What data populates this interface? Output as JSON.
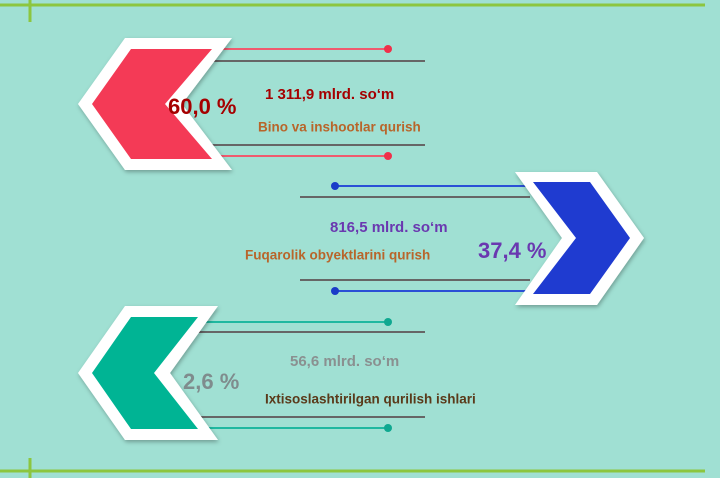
{
  "items": [
    {
      "percent": "60,0 %",
      "amount": "1 311,9 mlrd. so‘m",
      "label": "Bino va inshootlar qurish"
    },
    {
      "percent": "37,4 %",
      "amount": "816,5 mlrd. so‘m",
      "label": "Fuqarolik obyektlarini qurish"
    },
    {
      "percent": "2,6 %",
      "amount": "56,6 mlrd. so‘m",
      "label": "Ixtisoslashtirilgan qurilish ishlari"
    }
  ]
}
